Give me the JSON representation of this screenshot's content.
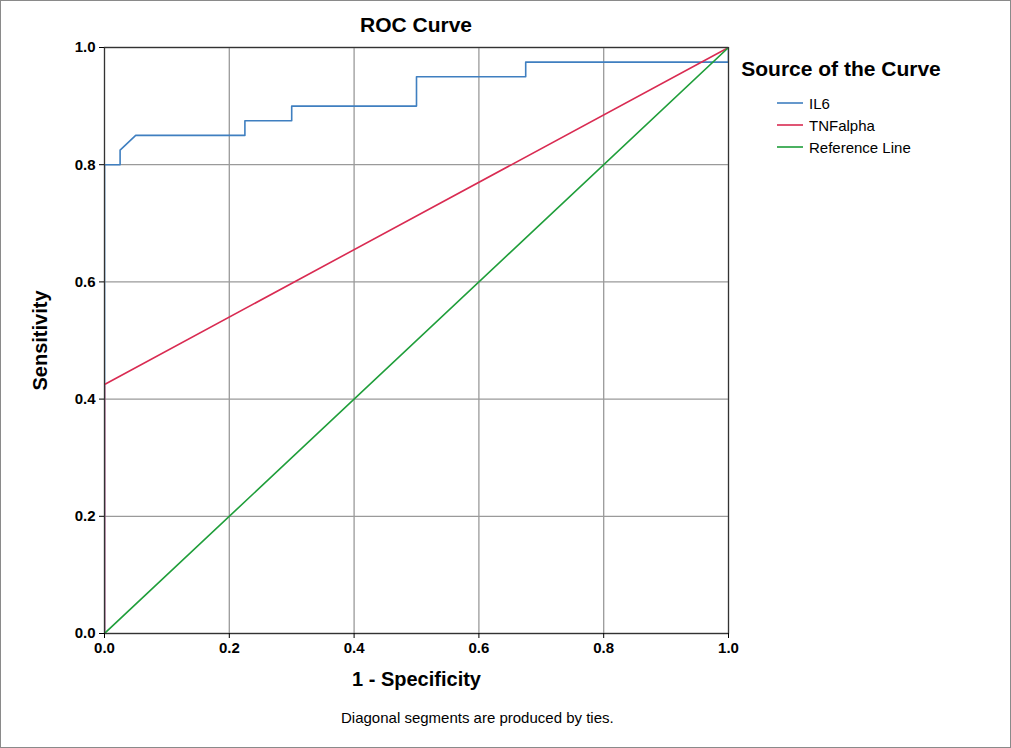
{
  "chart_data": {
    "type": "line",
    "title": "ROC Curve",
    "xlabel": "1 - Specificity",
    "ylabel": "Sensitivity",
    "legend_title": "Source of the Curve",
    "caption": "Diagonal segments are produced by ties.",
    "xlim": [
      0,
      1
    ],
    "ylim": [
      0,
      1
    ],
    "xticks": [
      {
        "value": 0,
        "label": "0.0"
      },
      0.2,
      0.4,
      0.6,
      0.8,
      {
        "value": 1,
        "label": "1.0"
      }
    ],
    "yticks": [
      {
        "value": 0,
        "label": "0.0"
      },
      0.2,
      0.4,
      0.6,
      0.8,
      {
        "value": 1,
        "label": "1.0"
      }
    ],
    "grid": true,
    "legend": "right",
    "series": [
      {
        "name": "IL6",
        "color": "#3f7fc0",
        "x": [
          0,
          0,
          0.025,
          0.025,
          0.05,
          0.225,
          0.225,
          0.3,
          0.3,
          0.5,
          0.5,
          0.675,
          0.675,
          1,
          1
        ],
        "values": [
          0,
          0.8,
          0.8,
          0.825,
          0.85,
          0.85,
          0.875,
          0.875,
          0.9,
          0.9,
          0.95,
          0.95,
          0.975,
          0.975,
          1
        ]
      },
      {
        "name": "TNFalpha",
        "color": "#d92b52",
        "x": [
          0,
          0,
          1
        ],
        "values": [
          0,
          0.425,
          1
        ]
      },
      {
        "name": "Reference Line",
        "color": "#1f9e3a",
        "x": [
          0,
          1
        ],
        "values": [
          0,
          1
        ]
      }
    ]
  }
}
